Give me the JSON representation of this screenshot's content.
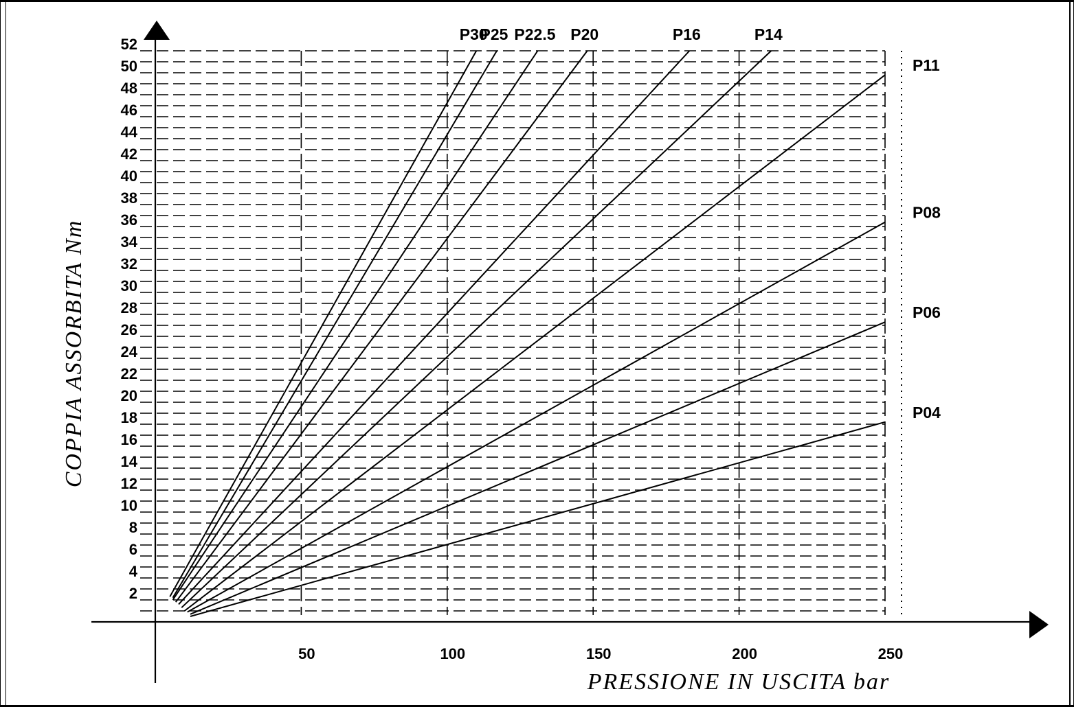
{
  "chart_data": {
    "type": "line",
    "xlabel": "PRESSIONE IN USCITA bar",
    "ylabel": "COPPIA ASSORBITA Nm",
    "xlim": [
      0,
      250
    ],
    "ylim": [
      0,
      52
    ],
    "x_ticks": [
      50,
      100,
      150,
      200,
      250
    ],
    "y_ticks": [
      2,
      4,
      6,
      8,
      10,
      12,
      14,
      16,
      18,
      20,
      22,
      24,
      26,
      28,
      30,
      32,
      34,
      36,
      38,
      40,
      42,
      44,
      46,
      48,
      50,
      52
    ],
    "grid": true,
    "series": [
      {
        "name": "P30",
        "x": [
          5,
          110
        ],
        "y": [
          2.3,
          52
        ]
      },
      {
        "name": "P25",
        "x": [
          6,
          117
        ],
        "y": [
          2.2,
          52
        ]
      },
      {
        "name": "P22.5",
        "x": [
          6,
          131
        ],
        "y": [
          2.0,
          52
        ]
      },
      {
        "name": "P20",
        "x": [
          7,
          148
        ],
        "y": [
          1.8,
          52
        ]
      },
      {
        "name": "P16",
        "x": [
          8,
          183
        ],
        "y": [
          1.6,
          52
        ]
      },
      {
        "name": "P14",
        "x": [
          9,
          211
        ],
        "y": [
          1.3,
          52
        ]
      },
      {
        "name": "P11",
        "x": [
          10,
          250
        ],
        "y": [
          1.0,
          49.8
        ]
      },
      {
        "name": "P08",
        "x": [
          11,
          250
        ],
        "y": [
          0.9,
          36.4
        ]
      },
      {
        "name": "P06",
        "x": [
          12,
          250
        ],
        "y": [
          0.7,
          27.3
        ]
      },
      {
        "name": "P04",
        "x": [
          12,
          250
        ],
        "y": [
          0.5,
          18.2
        ]
      }
    ],
    "label_placement": [
      {
        "name": "P30",
        "anchor": "top"
      },
      {
        "name": "P25",
        "anchor": "top"
      },
      {
        "name": "P22.5",
        "anchor": "top"
      },
      {
        "name": "P20",
        "anchor": "top"
      },
      {
        "name": "P16",
        "anchor": "top"
      },
      {
        "name": "P14",
        "anchor": "top"
      },
      {
        "name": "P11",
        "anchor": "right"
      },
      {
        "name": "P08",
        "anchor": "right"
      },
      {
        "name": "P06",
        "anchor": "right"
      },
      {
        "name": "P04",
        "anchor": "right"
      }
    ]
  }
}
